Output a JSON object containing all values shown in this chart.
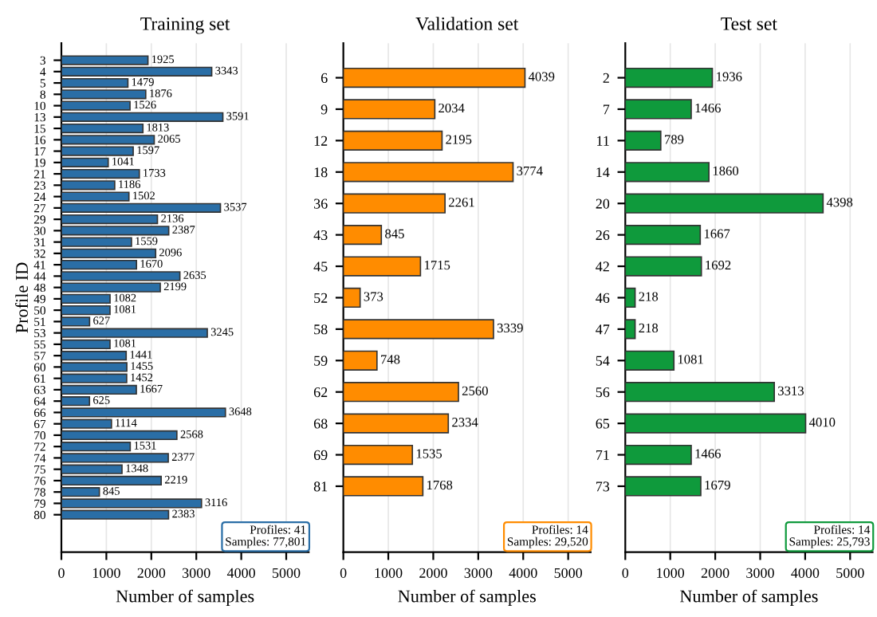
{
  "chart_data": [
    {
      "type": "bar",
      "orientation": "horizontal",
      "title": "Training set",
      "xlabel": "Number of samples",
      "ylabel": "Profile ID",
      "categories": [
        "3",
        "4",
        "5",
        "8",
        "10",
        "13",
        "15",
        "16",
        "17",
        "19",
        "21",
        "23",
        "24",
        "27",
        "29",
        "30",
        "31",
        "32",
        "41",
        "44",
        "48",
        "49",
        "50",
        "51",
        "53",
        "55",
        "57",
        "60",
        "61",
        "63",
        "64",
        "66",
        "67",
        "70",
        "72",
        "74",
        "75",
        "76",
        "78",
        "79",
        "80"
      ],
      "values": [
        1925,
        3343,
        1479,
        1876,
        1526,
        3591,
        1813,
        2065,
        1597,
        1041,
        1733,
        1186,
        1502,
        3537,
        2136,
        2387,
        1559,
        2096,
        1670,
        2635,
        2199,
        1082,
        1081,
        627,
        3245,
        1081,
        1441,
        1455,
        1452,
        1667,
        625,
        3648,
        1114,
        2568,
        1531,
        2377,
        1348,
        2219,
        845,
        3116,
        2383
      ],
      "color": "#2a6ea6",
      "data_labels": true,
      "xlim": [
        0,
        5500
      ],
      "xticks": [
        0,
        1000,
        2000,
        3000,
        4000,
        5000
      ],
      "grid": "x",
      "annotations": [
        "Profiles: 41\nSamples: 77,801"
      ]
    },
    {
      "type": "bar",
      "orientation": "horizontal",
      "title": "Validation set",
      "xlabel": "Number of samples",
      "categories": [
        "6",
        "9",
        "12",
        "18",
        "36",
        "43",
        "45",
        "52",
        "58",
        "59",
        "62",
        "68",
        "69",
        "81"
      ],
      "values": [
        4039,
        2034,
        2195,
        3774,
        2261,
        845,
        1715,
        373,
        3339,
        748,
        2560,
        2334,
        1535,
        1768
      ],
      "color": "#ff8c00",
      "data_labels": true,
      "xlim": [
        0,
        5500
      ],
      "xticks": [
        0,
        1000,
        2000,
        3000,
        4000,
        5000
      ],
      "grid": "x",
      "annotations": [
        "Profiles: 14\nSamples: 29,520"
      ]
    },
    {
      "type": "bar",
      "orientation": "horizontal",
      "title": "Test set",
      "xlabel": "Number of samples",
      "categories": [
        "2",
        "7",
        "11",
        "14",
        "20",
        "26",
        "42",
        "46",
        "47",
        "54",
        "56",
        "65",
        "71",
        "73"
      ],
      "values": [
        1936,
        1466,
        789,
        1860,
        4398,
        1667,
        1692,
        218,
        218,
        1081,
        3313,
        4010,
        1466,
        1679
      ],
      "color": "#0f9a3c",
      "data_labels": true,
      "xlim": [
        0,
        5500
      ],
      "xticks": [
        0,
        1000,
        2000,
        3000,
        4000,
        5000
      ],
      "grid": "x",
      "annotations": [
        "Profiles: 14\nSamples: 25,793"
      ]
    }
  ]
}
